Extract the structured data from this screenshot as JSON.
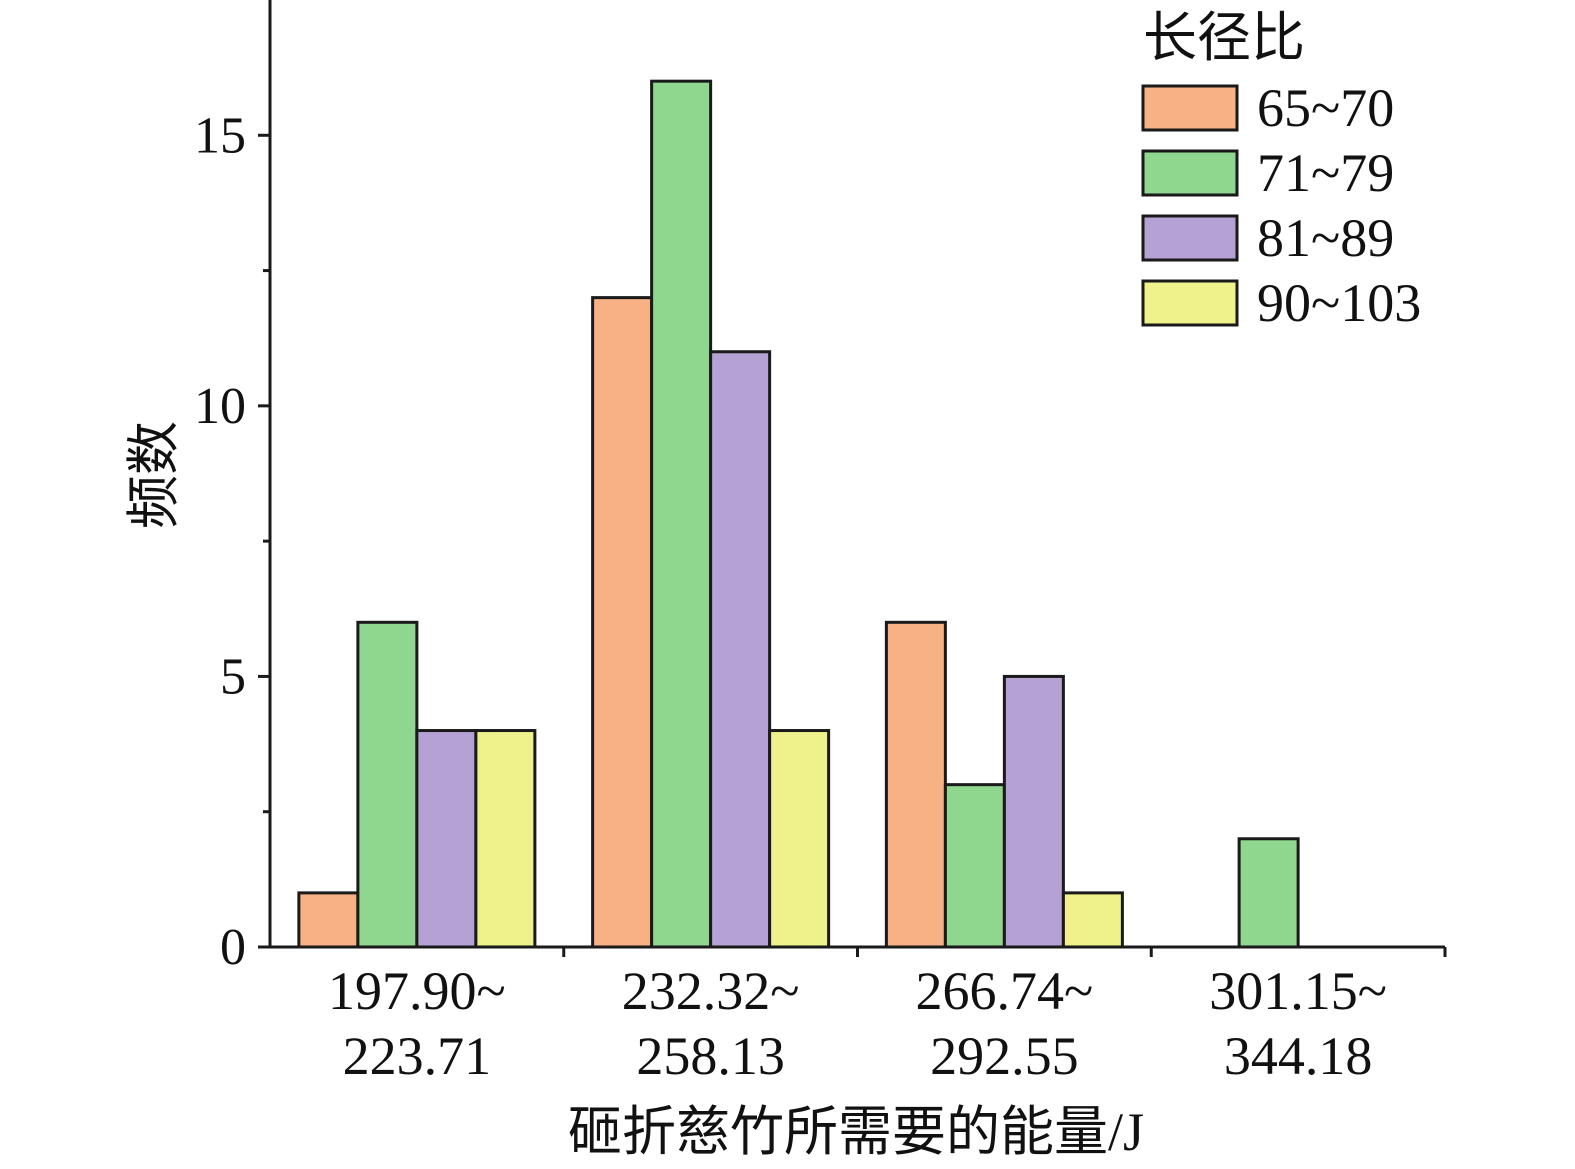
{
  "chart_data": {
    "type": "bar",
    "categories": [
      "197.90~223.71",
      "232.32~258.13",
      "266.74~292.55",
      "301.15~344.18"
    ],
    "series": [
      {
        "name": "65~70",
        "values": [
          1,
          12,
          6,
          0
        ],
        "color": "#F7B185"
      },
      {
        "name": "71~79",
        "values": [
          6,
          16,
          3,
          2
        ],
        "color": "#8FD68F"
      },
      {
        "name": "81~89",
        "values": [
          4,
          11,
          5,
          0
        ],
        "color": "#B5A1D3"
      },
      {
        "name": "90~103",
        "values": [
          4,
          4,
          1,
          0
        ],
        "color": "#EFF28B"
      }
    ],
    "xlabel": "砸折慈竹所需要的能量/J",
    "ylabel": "频数",
    "ylim": [
      0,
      17.5
    ],
    "yticks": [
      0,
      5,
      10,
      15
    ],
    "grid": false,
    "legend": {
      "title": "长径比",
      "placement": "top-right"
    }
  }
}
